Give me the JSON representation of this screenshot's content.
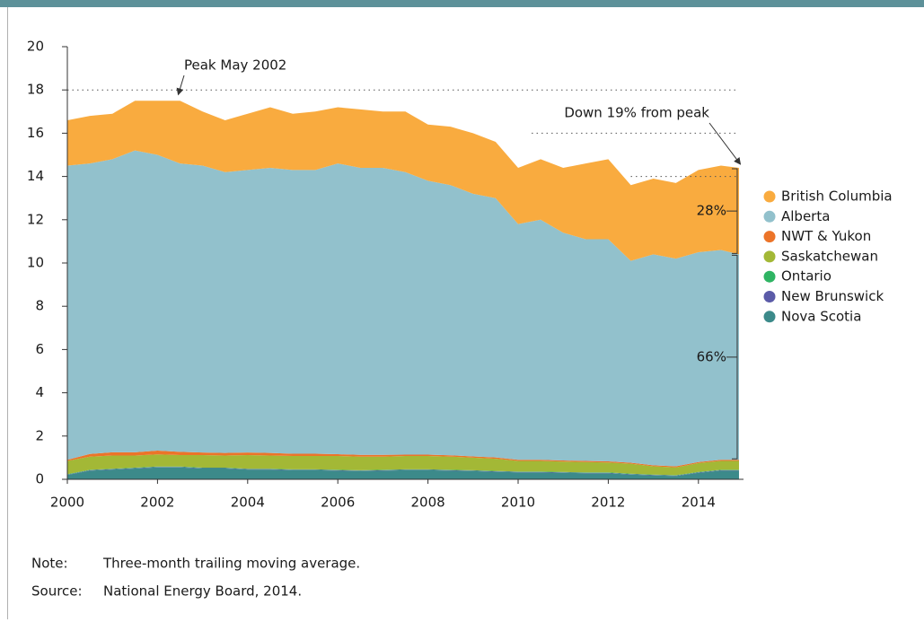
{
  "chart_data": {
    "type": "stacked_area",
    "x": [
      2000,
      2000.5,
      2001,
      2001.5,
      2002,
      2002.5,
      2003,
      2003.5,
      2004,
      2004.5,
      2005,
      2005.5,
      2006,
      2006.5,
      2007,
      2007.5,
      2008,
      2008.5,
      2009,
      2009.5,
      2010,
      2010.5,
      2011,
      2011.5,
      2012,
      2012.5,
      2013,
      2013.5,
      2014,
      2014.5,
      2014.9
    ],
    "series": [
      {
        "name": "British Columbia",
        "color": "#f9ab3f",
        "values": [
          2.1,
          2.2,
          2.1,
          2.3,
          2.5,
          2.9,
          2.5,
          2.4,
          2.6,
          2.8,
          2.6,
          2.7,
          2.6,
          2.7,
          2.6,
          2.8,
          2.6,
          2.7,
          2.8,
          2.6,
          2.6,
          2.8,
          3.0,
          3.5,
          3.7,
          3.5,
          3.5,
          3.5,
          3.8,
          3.9,
          4.0
        ]
      },
      {
        "name": "Alberta",
        "color": "#92c1cc",
        "values": [
          13.6,
          13.43,
          13.55,
          13.95,
          13.67,
          13.33,
          13.26,
          12.98,
          13.06,
          13.18,
          13.12,
          13.12,
          13.44,
          13.27,
          13.27,
          13.06,
          12.66,
          12.49,
          12.14,
          11.99,
          10.9,
          11.1,
          10.53,
          10.25,
          10.27,
          9.33,
          9.75,
          9.6,
          9.7,
          9.7,
          9.5
        ]
      },
      {
        "name": "NWT & Yukon",
        "color": "#ec7429",
        "values": [
          0.05,
          0.12,
          0.15,
          0.15,
          0.18,
          0.15,
          0.12,
          0.12,
          0.12,
          0.12,
          0.1,
          0.1,
          0.08,
          0.08,
          0.08,
          0.06,
          0.06,
          0.06,
          0.06,
          0.06,
          0.05,
          0.05,
          0.05,
          0.05,
          0.05,
          0.05,
          0.05,
          0.05,
          0.05,
          0.05,
          0.05
        ]
      },
      {
        "name": "Saskatchewan",
        "color": "#a3b836",
        "values": [
          0.61,
          0.61,
          0.61,
          0.56,
          0.56,
          0.53,
          0.58,
          0.56,
          0.63,
          0.61,
          0.62,
          0.62,
          0.64,
          0.63,
          0.61,
          0.62,
          0.62,
          0.61,
          0.58,
          0.56,
          0.49,
          0.49,
          0.48,
          0.48,
          0.46,
          0.46,
          0.38,
          0.36,
          0.41,
          0.41,
          0.41
        ]
      },
      {
        "name": "Ontario",
        "color": "#2fb463",
        "values": [
          0.02,
          0.02,
          0.02,
          0.02,
          0.02,
          0.02,
          0.02,
          0.02,
          0.02,
          0.02,
          0.02,
          0.02,
          0.02,
          0.02,
          0.02,
          0.02,
          0.02,
          0.02,
          0.02,
          0.02,
          0.02,
          0.02,
          0.02,
          0.02,
          0.02,
          0.02,
          0.02,
          0.02,
          0.02,
          0.02,
          0.02
        ]
      },
      {
        "name": "New Brunswick",
        "color": "#5b5ba8",
        "values": [
          0.02,
          0.02,
          0.02,
          0.02,
          0.02,
          0.02,
          0.02,
          0.02,
          0.02,
          0.02,
          0.02,
          0.02,
          0.02,
          0.02,
          0.02,
          0.02,
          0.02,
          0.02,
          0.02,
          0.02,
          0.02,
          0.02,
          0.02,
          0.02,
          0.02,
          0.02,
          0.02,
          0.02,
          0.02,
          0.02,
          0.02
        ]
      },
      {
        "name": "Nova Scotia",
        "color": "#3c8a8a",
        "values": [
          0.2,
          0.4,
          0.45,
          0.5,
          0.55,
          0.55,
          0.5,
          0.5,
          0.45,
          0.45,
          0.42,
          0.42,
          0.4,
          0.38,
          0.4,
          0.42,
          0.42,
          0.4,
          0.38,
          0.35,
          0.32,
          0.32,
          0.3,
          0.28,
          0.28,
          0.22,
          0.18,
          0.15,
          0.3,
          0.4,
          0.4
        ]
      }
    ],
    "xlim": [
      2000,
      2015
    ],
    "xticks": [
      2000,
      2002,
      2004,
      2006,
      2008,
      2010,
      2012,
      2014
    ],
    "ylim": [
      0,
      20
    ],
    "yticks": [
      0,
      2,
      4,
      6,
      8,
      10,
      12,
      14,
      16,
      18,
      20
    ],
    "dotted_lines": [
      {
        "y": 18,
        "x_start": 2000
      },
      {
        "y": 16,
        "x_start": 2010.3
      },
      {
        "y": 14,
        "x_start": 2012.5
      }
    ],
    "annotations": [
      {
        "text": "Peak May 2002",
        "x": 2002.4,
        "y": 17.7
      },
      {
        "text": "Down 19% from peak",
        "x": 2014.95,
        "y": 14.4
      }
    ],
    "share_labels": [
      {
        "label": "28%",
        "series": 0
      },
      {
        "label": "66%",
        "series": 1
      }
    ],
    "legend": "right"
  },
  "note": {
    "label": "Note:",
    "text": "Three-month trailing moving average."
  },
  "source": {
    "label": "Source:",
    "text": "National Energy Board, 2014."
  }
}
